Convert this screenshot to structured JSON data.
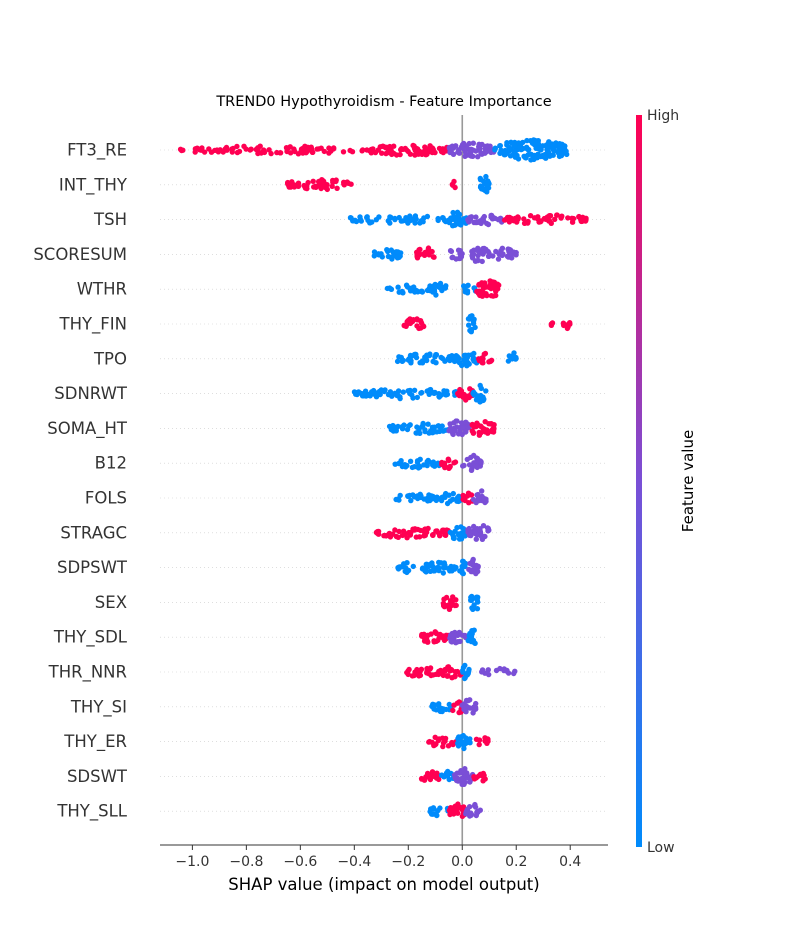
{
  "chart_data": {
    "type": "scatter",
    "subtype": "shap-beeswarm",
    "title": "TREND0 Hypothyroidism - Feature Importance",
    "xlabel": "SHAP value (impact on model output)",
    "xlim": [
      -1.12,
      0.54
    ],
    "xticks": [
      -1.0,
      -0.8,
      -0.6,
      -0.4,
      -0.2,
      0.0,
      0.2,
      0.4
    ],
    "xtick_labels": [
      "−1.0",
      "−0.8",
      "−0.6",
      "−0.4",
      "−0.2",
      "0.0",
      "0.2",
      "0.4"
    ],
    "grid": false,
    "colorbar": {
      "label": "Feature value",
      "high_label": "High",
      "low_label": "Low",
      "high_color": "#ff0052",
      "mid_color": "#7a4fd6",
      "low_color": "#008bfb"
    },
    "features": [
      {
        "name": "FT3_RE",
        "clusters": [
          {
            "from": -1.05,
            "to": -0.35,
            "color": "high",
            "density": 0.5
          },
          {
            "from": -0.35,
            "to": -0.05,
            "color": "high",
            "density": 0.9
          },
          {
            "from": -0.05,
            "to": 0.12,
            "color": "mid",
            "density": 1.4
          },
          {
            "from": 0.12,
            "to": 0.39,
            "color": "low",
            "density": 2.2
          }
        ]
      },
      {
        "name": "INT_THY",
        "clusters": [
          {
            "from": -0.65,
            "to": -0.4,
            "color": "high",
            "density": 0.9
          },
          {
            "from": -0.04,
            "to": -0.02,
            "color": "high",
            "density": 0.4
          },
          {
            "from": 0.06,
            "to": 0.1,
            "color": "low",
            "density": 2.0
          }
        ]
      },
      {
        "name": "TSH",
        "clusters": [
          {
            "from": -0.42,
            "to": -0.05,
            "color": "low",
            "density": 0.6
          },
          {
            "from": -0.05,
            "to": 0.02,
            "color": "low",
            "density": 1.8
          },
          {
            "from": 0.02,
            "to": 0.15,
            "color": "mid",
            "density": 0.9
          },
          {
            "from": 0.15,
            "to": 0.47,
            "color": "high",
            "density": 0.7
          }
        ]
      },
      {
        "name": "SCORESUM",
        "clusters": [
          {
            "from": -0.33,
            "to": -0.22,
            "color": "low",
            "density": 0.8
          },
          {
            "from": -0.17,
            "to": -0.1,
            "color": "high",
            "density": 1.3
          },
          {
            "from": -0.05,
            "to": 0.0,
            "color": "mid",
            "density": 1.0
          },
          {
            "from": 0.03,
            "to": 0.1,
            "color": "mid",
            "density": 1.6
          },
          {
            "from": 0.1,
            "to": 0.2,
            "color": "mid",
            "density": 1.1
          }
        ]
      },
      {
        "name": "WTHR",
        "clusters": [
          {
            "from": -0.28,
            "to": -0.12,
            "color": "low",
            "density": 0.7
          },
          {
            "from": -0.12,
            "to": -0.06,
            "color": "low",
            "density": 1.4
          },
          {
            "from": 0.0,
            "to": 0.05,
            "color": "low",
            "density": 0.8
          },
          {
            "from": 0.05,
            "to": 0.14,
            "color": "high",
            "density": 1.8
          }
        ]
      },
      {
        "name": "THY_FIN",
        "clusters": [
          {
            "from": -0.22,
            "to": -0.14,
            "color": "high",
            "density": 1.0
          },
          {
            "from": 0.02,
            "to": 0.05,
            "color": "low",
            "density": 1.7
          },
          {
            "from": 0.33,
            "to": 0.34,
            "color": "high",
            "density": 0.3
          },
          {
            "from": 0.37,
            "to": 0.4,
            "color": "high",
            "density": 0.9
          }
        ]
      },
      {
        "name": "TPO",
        "clusters": [
          {
            "from": -0.25,
            "to": -0.04,
            "color": "low",
            "density": 0.8
          },
          {
            "from": -0.04,
            "to": 0.06,
            "color": "low",
            "density": 1.6
          },
          {
            "from": 0.06,
            "to": 0.11,
            "color": "high",
            "density": 1.0
          },
          {
            "from": 0.17,
            "to": 0.21,
            "color": "low",
            "density": 1.1
          }
        ]
      },
      {
        "name": "SDNRWT",
        "clusters": [
          {
            "from": -0.4,
            "to": -0.02,
            "color": "low",
            "density": 0.8
          },
          {
            "from": -0.02,
            "to": 0.04,
            "color": "high",
            "density": 1.2
          },
          {
            "from": 0.04,
            "to": 0.09,
            "color": "low",
            "density": 1.7
          }
        ]
      },
      {
        "name": "SOMA_HT",
        "clusters": [
          {
            "from": -0.27,
            "to": -0.05,
            "color": "low",
            "density": 0.8
          },
          {
            "from": -0.05,
            "to": 0.03,
            "color": "mid",
            "density": 1.7
          },
          {
            "from": 0.03,
            "to": 0.12,
            "color": "high",
            "density": 1.5
          }
        ]
      },
      {
        "name": "B12",
        "clusters": [
          {
            "from": -0.25,
            "to": -0.08,
            "color": "low",
            "density": 0.7
          },
          {
            "from": -0.08,
            "to": -0.02,
            "color": "high",
            "density": 0.9
          },
          {
            "from": 0.0,
            "to": 0.07,
            "color": "mid",
            "density": 1.6
          }
        ]
      },
      {
        "name": "FOLS",
        "clusters": [
          {
            "from": -0.25,
            "to": -0.1,
            "color": "low",
            "density": 0.7
          },
          {
            "from": -0.1,
            "to": 0.0,
            "color": "low",
            "density": 1.0
          },
          {
            "from": 0.0,
            "to": 0.04,
            "color": "high",
            "density": 1.1
          },
          {
            "from": 0.04,
            "to": 0.09,
            "color": "mid",
            "density": 1.5
          }
        ]
      },
      {
        "name": "STRAGC",
        "clusters": [
          {
            "from": -0.32,
            "to": -0.05,
            "color": "high",
            "density": 0.9
          },
          {
            "from": -0.05,
            "to": 0.02,
            "color": "low",
            "density": 1.3
          },
          {
            "from": 0.02,
            "to": 0.1,
            "color": "mid",
            "density": 1.7
          }
        ]
      },
      {
        "name": "SDPSWT",
        "clusters": [
          {
            "from": -0.24,
            "to": -0.18,
            "color": "low",
            "density": 0.8
          },
          {
            "from": -0.16,
            "to": -0.02,
            "color": "low",
            "density": 1.0
          },
          {
            "from": -0.02,
            "to": 0.02,
            "color": "low",
            "density": 1.2
          },
          {
            "from": 0.02,
            "to": 0.06,
            "color": "mid",
            "density": 1.7
          }
        ]
      },
      {
        "name": "SEX",
        "clusters": [
          {
            "from": -0.07,
            "to": -0.02,
            "color": "high",
            "density": 1.6
          },
          {
            "from": 0.03,
            "to": 0.06,
            "color": "low",
            "density": 2.0
          }
        ]
      },
      {
        "name": "THY_SDL",
        "clusters": [
          {
            "from": -0.16,
            "to": -0.05,
            "color": "high",
            "density": 1.0
          },
          {
            "from": -0.05,
            "to": 0.02,
            "color": "mid",
            "density": 1.4
          },
          {
            "from": 0.02,
            "to": 0.06,
            "color": "low",
            "density": 1.4
          }
        ]
      },
      {
        "name": "THR_NNR",
        "clusters": [
          {
            "from": -0.21,
            "to": -0.08,
            "color": "high",
            "density": 0.9
          },
          {
            "from": -0.08,
            "to": 0.0,
            "color": "high",
            "density": 1.0
          },
          {
            "from": 0.0,
            "to": 0.03,
            "color": "low",
            "density": 1.8
          },
          {
            "from": 0.06,
            "to": 0.2,
            "color": "mid",
            "density": 0.4
          }
        ]
      },
      {
        "name": "THY_SI",
        "clusters": [
          {
            "from": -0.12,
            "to": -0.04,
            "color": "low",
            "density": 0.8
          },
          {
            "from": -0.04,
            "to": 0.01,
            "color": "high",
            "density": 1.1
          },
          {
            "from": 0.0,
            "to": 0.05,
            "color": "mid",
            "density": 1.6
          }
        ]
      },
      {
        "name": "THY_ER",
        "clusters": [
          {
            "from": -0.13,
            "to": -0.02,
            "color": "high",
            "density": 0.8
          },
          {
            "from": -0.02,
            "to": 0.03,
            "color": "low",
            "density": 1.5
          },
          {
            "from": 0.05,
            "to": 0.1,
            "color": "high",
            "density": 0.7
          }
        ]
      },
      {
        "name": "SDSWT",
        "clusters": [
          {
            "from": -0.16,
            "to": -0.08,
            "color": "high",
            "density": 0.8
          },
          {
            "from": -0.08,
            "to": -0.03,
            "color": "low",
            "density": 0.9
          },
          {
            "from": -0.03,
            "to": 0.04,
            "color": "mid",
            "density": 1.7
          },
          {
            "from": 0.04,
            "to": 0.09,
            "color": "high",
            "density": 1.0
          }
        ]
      },
      {
        "name": "THY_SLL",
        "clusters": [
          {
            "from": -0.12,
            "to": -0.05,
            "color": "low",
            "density": 0.8
          },
          {
            "from": -0.05,
            "to": 0.01,
            "color": "high",
            "density": 1.6
          },
          {
            "from": 0.01,
            "to": 0.07,
            "color": "mid",
            "density": 1.3
          }
        ]
      }
    ]
  }
}
